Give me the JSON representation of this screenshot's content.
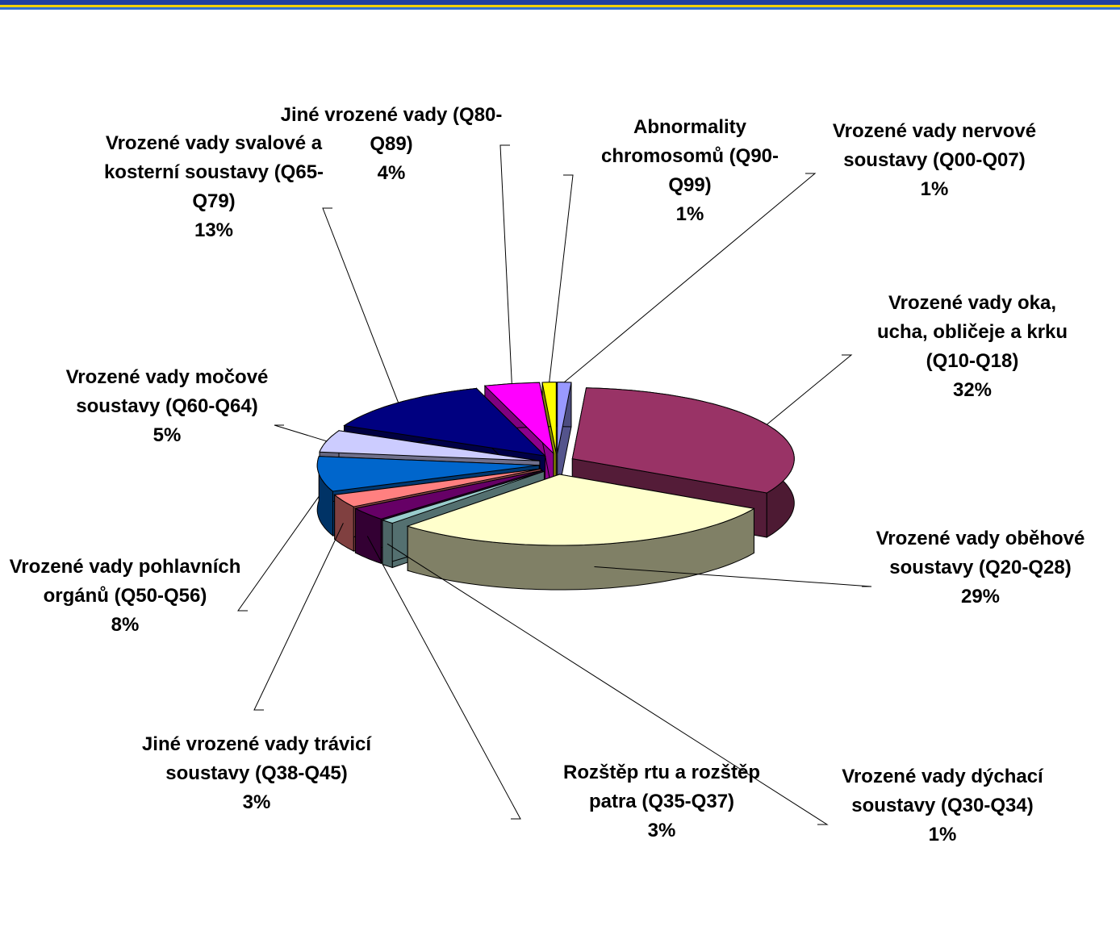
{
  "chart_data": {
    "type": "pie",
    "categories": [
      "Vrozené vady nervové soustavy (Q00-Q07)",
      "Vrozené vady oka, ucha, obličeje a krku (Q10-Q18)",
      "Vrozené vady oběhové soustavy (Q20-Q28)",
      "Vrozené vady dýchací soustavy (Q30-Q34)",
      "Rozštěp rtu a rozštěp patra (Q35-Q37)",
      "Jiné vrozené vady trávicí soustavy (Q38-Q45)",
      "Vrozené vady pohlavních orgánů (Q50-Q56)",
      "Vrozené vady močové soustavy (Q60-Q64)",
      "Vrozené vady svalové a kosterní soustavy (Q65-Q79)",
      "Jiné vrozené vady (Q80-Q89)",
      "Abnormality chromosomů (Q90-Q99)"
    ],
    "values": [
      1,
      32,
      29,
      1,
      3,
      3,
      8,
      5,
      13,
      4,
      1
    ],
    "value_labels": [
      "1%",
      "32%",
      "29%",
      "1%",
      "3%",
      "3%",
      "8%",
      "5%",
      "13%",
      "4%",
      "1%"
    ],
    "colors": [
      "#9999ff",
      "#993366",
      "#ffffcc",
      "#99cccc",
      "#660066",
      "#ff8080",
      "#0066cc",
      "#ccccff",
      "#000080",
      "#ff00ff",
      "#ffff00"
    ]
  }
}
